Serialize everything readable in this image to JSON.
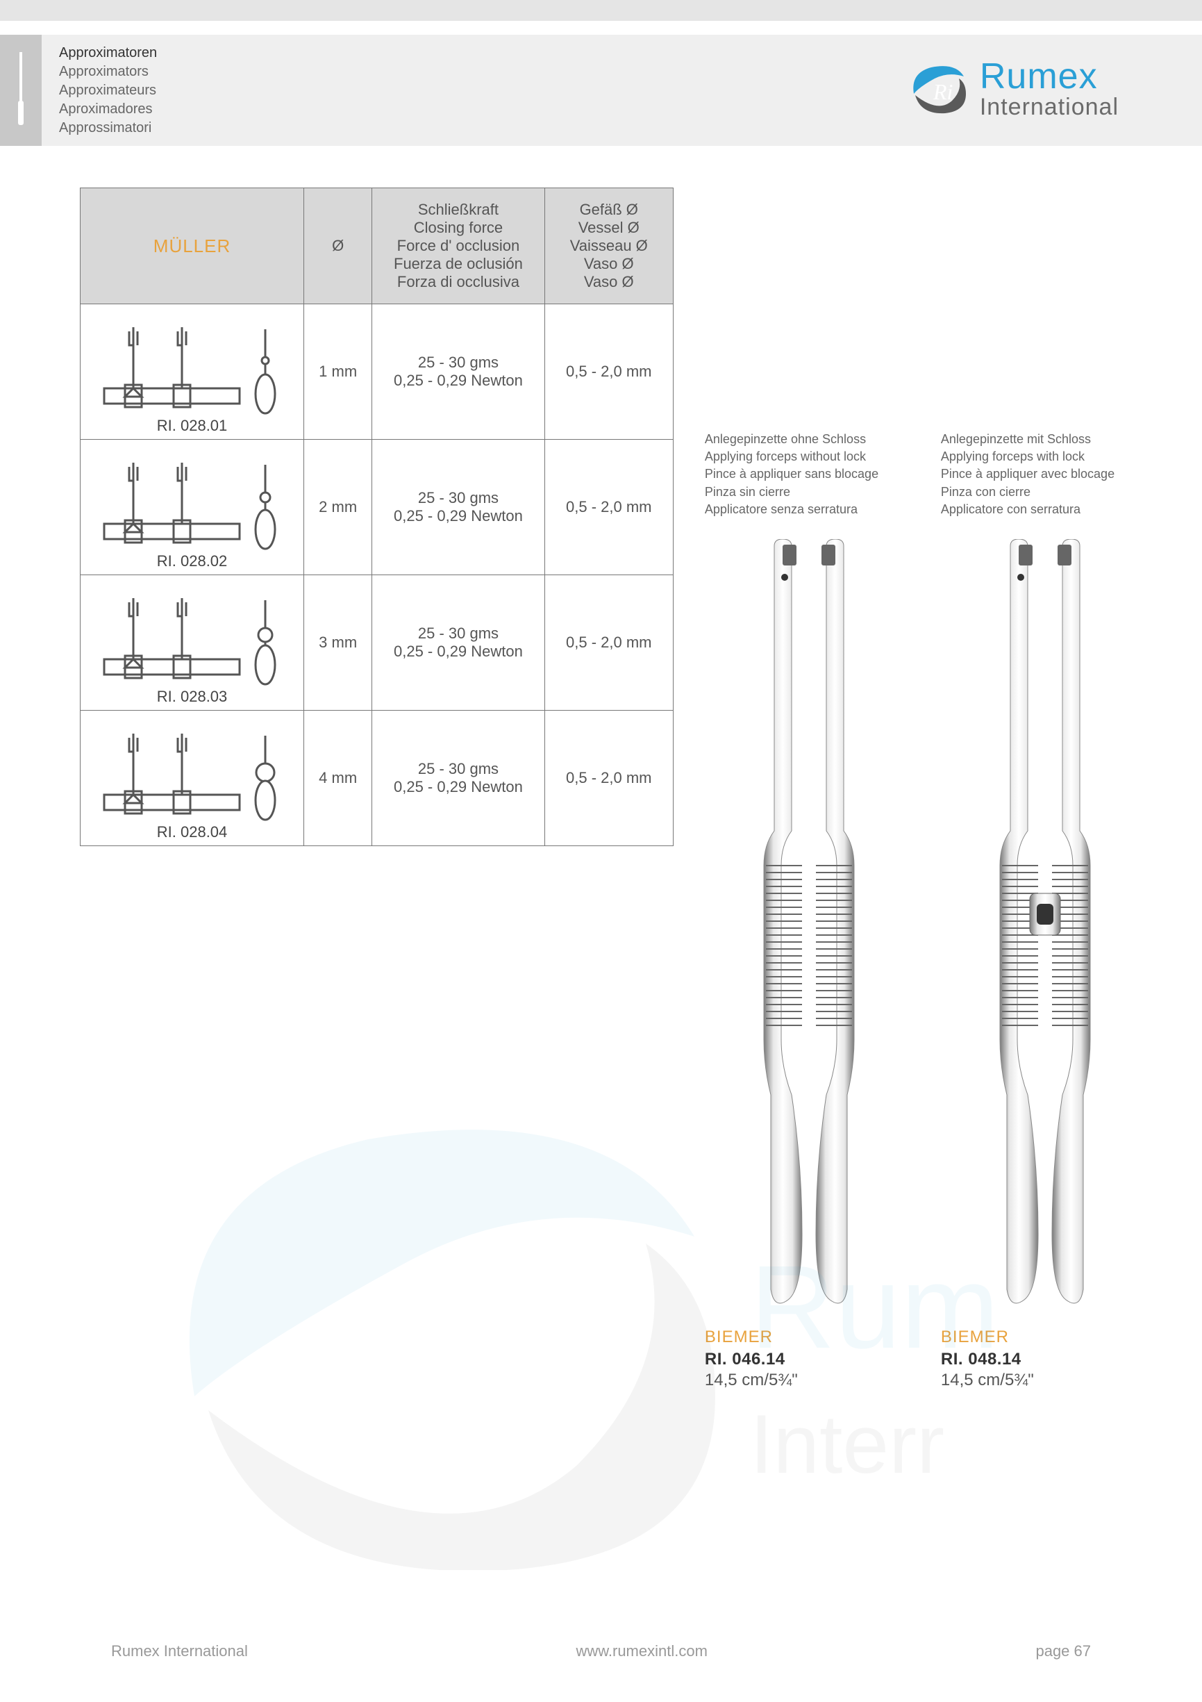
{
  "header": {
    "breadcrumb": [
      "Approximatoren",
      "Approximators",
      "Approximateurs",
      "Aproximadores",
      "Approssimatori"
    ],
    "brand": "Rumex",
    "brand_sub": "International",
    "logo_color": "#2a9fd6",
    "logo_dark": "#5a5a5a"
  },
  "table": {
    "columns": {
      "name": "MÜLLER",
      "diameter": "Ø",
      "force": [
        "Schließkraft",
        "Closing force",
        "Force d' occlusion",
        "Fuerza de oclusión",
        "Forza di occlusiva"
      ],
      "vessel": [
        "Gefäß Ø",
        "Vessel Ø",
        "Vaisseau Ø",
        "Vaso Ø",
        "Vaso Ø"
      ]
    },
    "rows": [
      {
        "part": "RI. 028.01",
        "diameter": "1 mm",
        "force_line1": "25 - 30 gms",
        "force_line2": "0,25 - 0,29 Newton",
        "vessel": "0,5 - 2,0 mm",
        "ball_r": 5
      },
      {
        "part": "RI. 028.02",
        "diameter": "2 mm",
        "force_line1": "25 - 30 gms",
        "force_line2": "0,25 - 0,29 Newton",
        "vessel": "0,5 - 2,0 mm",
        "ball_r": 7
      },
      {
        "part": "RI. 028.03",
        "diameter": "3 mm",
        "force_line1": "25 - 30 gms",
        "force_line2": "0,25 - 0,29 Newton",
        "vessel": "0,5 - 2,0 mm",
        "ball_r": 10
      },
      {
        "part": "RI. 028.04",
        "diameter": "4 mm",
        "force_line1": "25 - 30 gms",
        "force_line2": "0,25 - 0,29 Newton",
        "vessel": "0,5 - 2,0 mm",
        "ball_r": 13
      }
    ]
  },
  "forceps": {
    "label_left": [
      "Anlegepinzette ohne Schloss",
      "Applying forceps without lock",
      "Pince à appliquer sans blocage",
      "Pinza sin cierre",
      "Applicatore senza serratura"
    ],
    "label_right": [
      "Anlegepinzette mit Schloss",
      "Applying forceps with lock",
      "Pince à appliquer avec blocage",
      "Pinza con cierre",
      "Applicatore con serratura"
    ],
    "items": [
      {
        "name": "BIEMER",
        "code": "RI. 046.14",
        "size": "14,5 cm/5¾\"",
        "lock": false
      },
      {
        "name": "BIEMER",
        "code": "RI. 048.14",
        "size": "14,5 cm/5¾\"",
        "lock": true
      }
    ],
    "metal_light": "#e8e8e8",
    "metal_mid": "#b8b8b8",
    "metal_dark": "#7a7a7a"
  },
  "footer": {
    "left": "Rumex International",
    "center": "www.rumexintl.com",
    "right": "page 67"
  },
  "colors": {
    "accent": "#e8a23d",
    "text": "#555",
    "border": "#777",
    "header_bg": "#d8d8d8"
  }
}
